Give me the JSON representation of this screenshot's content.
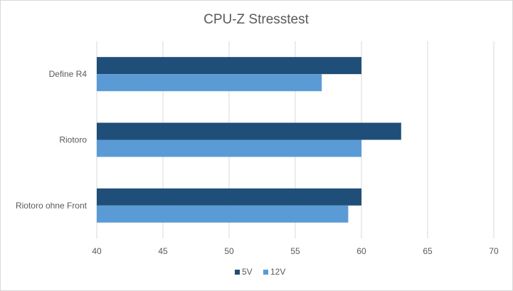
{
  "chart_data": {
    "type": "bar",
    "orientation": "horizontal",
    "title": "CPU-Z Stresstest",
    "categories": [
      "Define R4",
      "Riotoro",
      "Riotoro ohne Front"
    ],
    "series": [
      {
        "name": "5V",
        "values": [
          60,
          63,
          60
        ],
        "color": "#1f4e79"
      },
      {
        "name": "12V",
        "values": [
          57,
          60,
          59
        ],
        "color": "#5b9bd5"
      }
    ],
    "xlim": [
      40,
      70
    ],
    "xticks": [
      "40",
      "45",
      "50",
      "55",
      "60",
      "65",
      "70"
    ],
    "grid": true,
    "legend_position": "bottom"
  }
}
